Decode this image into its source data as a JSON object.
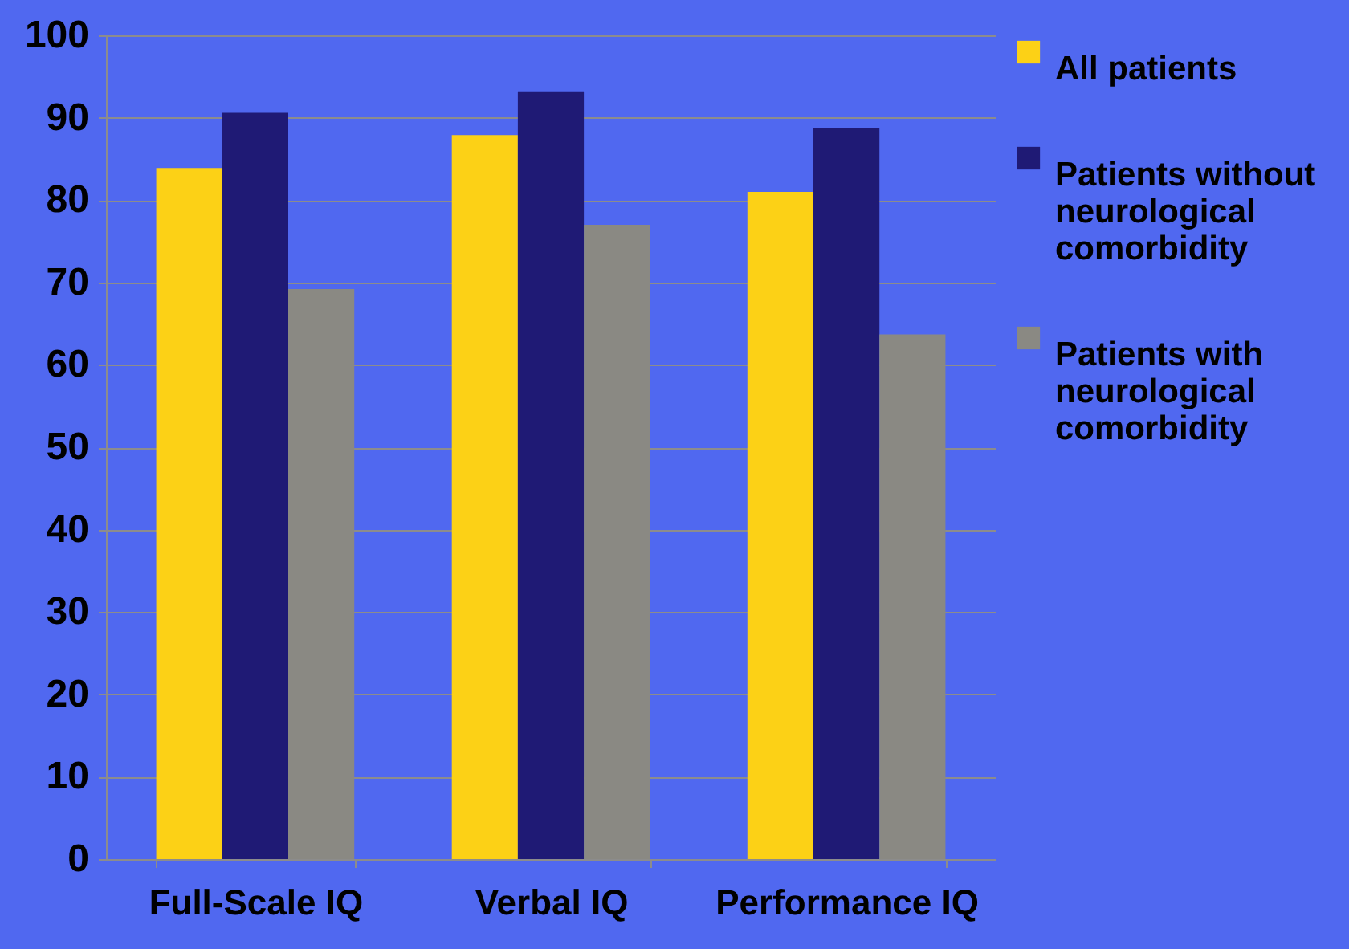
{
  "chart_data": {
    "type": "bar",
    "categories": [
      "Full-Scale IQ",
      "Verbal IQ",
      "Performance IQ"
    ],
    "series": [
      {
        "name": "All patients",
        "color": "#fcd116",
        "values": [
          83.9,
          87.9,
          81.0
        ]
      },
      {
        "name": "Patients without neurological comorbidity",
        "color": "#1f1a75",
        "values": [
          90.6,
          93.2,
          88.8
        ]
      },
      {
        "name": "Patients with neurological comorbidity",
        "color": "#8a8983",
        "values": [
          69.2,
          77.0,
          63.7
        ]
      }
    ],
    "ylim": [
      0,
      100
    ],
    "yticks": [
      0,
      10,
      20,
      30,
      40,
      50,
      60,
      70,
      80,
      90,
      100
    ],
    "grid": "y",
    "legend": "right"
  }
}
